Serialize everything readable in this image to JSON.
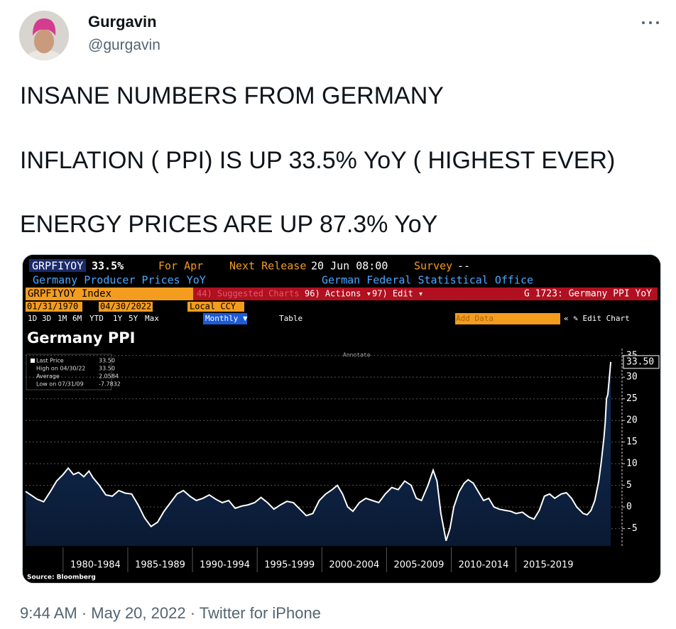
{
  "tweet": {
    "author": {
      "name": "Gurgavin",
      "handle": "@gurgavin"
    },
    "lines": [
      "INSANE NUMBERS FROM GERMANY",
      "INFLATION ( PPI) IS UP 33.5% YoY ( HIGHEST EVER)",
      "ENERGY PRICES ARE UP 87.3% YoY"
    ],
    "timestamp": "9:44 AM · May 20, 2022 · Twitter for iPhone"
  },
  "terminal": {
    "row1": [
      "GRPFIYOY",
      "33.5%",
      "For Apr",
      "Next Release",
      "20 Jun 08:00",
      "Survey",
      "--"
    ],
    "row2": [
      "Germany Producer Prices YoY",
      "German Federal Statistical Office"
    ],
    "row3": [
      "GRPFIYOY Index",
      "44) Suggested Charts",
      "96) Actions ▾",
      "97) Edit ▾",
      "G 1723: Germany PPI YoY"
    ],
    "row4": [
      "01/31/1970",
      "04/30/2022",
      "Local CCY"
    ],
    "row5": [
      "1D",
      "3D",
      "1M",
      "6M",
      "YTD",
      "1Y",
      "5Y",
      "Max",
      "Monthly ▼",
      "Table",
      "Add Data",
      "« ✎ Edit Chart"
    ],
    "annotate": "Annotate",
    "source": "Source: Bloomberg"
  },
  "chart_data": {
    "type": "area",
    "title": "Germany PPI",
    "color": "#ffffff",
    "fill": "#12305a",
    "legend": [
      {
        "label": "Last Price",
        "value": "33.50"
      },
      {
        "label": "High on 04/30/22",
        "value": "33.50"
      },
      {
        "label": "Average",
        "value": "2.0584"
      },
      {
        "label": "Low on 07/31/09",
        "value": "-7.7832"
      }
    ],
    "last_label": "33.50",
    "xlim": [
      1977.1,
      2023.2
    ],
    "ylim": [
      -9,
      36.6
    ],
    "yticks": [
      -5,
      0,
      5,
      10,
      15,
      20,
      25,
      30,
      35
    ],
    "xticks": [
      {
        "value": 1980,
        "label": "1980-1984"
      },
      {
        "value": 1985,
        "label": "1985-1989"
      },
      {
        "value": 1990,
        "label": "1990-1994"
      },
      {
        "value": 1995,
        "label": "1995-1999"
      },
      {
        "value": 2000,
        "label": "2000-2004"
      },
      {
        "value": 2005,
        "label": "2005-2009"
      },
      {
        "value": 2010,
        "label": "2010-2014"
      },
      {
        "value": 2015,
        "label": "2015-2019"
      }
    ],
    "x": [
      1977.1,
      1977.5,
      1978.0,
      1978.5,
      1979.0,
      1979.5,
      1980.0,
      1980.4,
      1980.8,
      1981.2,
      1981.6,
      1982.0,
      1982.3,
      1982.8,
      1983.3,
      1983.8,
      1984.3,
      1984.8,
      1985.3,
      1985.8,
      1986.3,
      1986.8,
      1987.3,
      1987.8,
      1988.3,
      1988.8,
      1989.3,
      1989.8,
      1990.3,
      1990.8,
      1991.3,
      1991.8,
      1992.3,
      1992.8,
      1993.3,
      1993.8,
      1994.3,
      1994.8,
      1995.3,
      1995.8,
      1996.3,
      1996.8,
      1997.3,
      1997.8,
      1998.3,
      1998.8,
      1999.3,
      1999.8,
      2000.3,
      2000.8,
      2001.2,
      2001.6,
      2002.0,
      2002.4,
      2002.9,
      2003.4,
      2003.9,
      2004.4,
      2004.9,
      2005.4,
      2005.9,
      2006.4,
      2006.9,
      2007.3,
      2007.7,
      2008.2,
      2008.6,
      2008.9,
      2009.2,
      2009.6,
      2009.9,
      2010.2,
      2010.6,
      2011.0,
      2011.3,
      2011.7,
      2012.1,
      2012.5,
      2012.9,
      2013.3,
      2013.7,
      2014.2,
      2014.6,
      2015.0,
      2015.5,
      2016.0,
      2016.4,
      2016.8,
      2017.2,
      2017.6,
      2018.0,
      2018.5,
      2018.9,
      2019.3,
      2019.7,
      2020.2,
      2020.5,
      2020.8,
      2021.1,
      2021.4,
      2021.6,
      2021.8,
      2021.9,
      2022.0,
      2022.1,
      2022.25,
      2022.33
    ],
    "values": [
      3.6,
      2.8,
      1.8,
      1.2,
      3.5,
      6.0,
      7.5,
      9.0,
      7.5,
      8.0,
      7.0,
      8.3,
      6.8,
      5.0,
      2.8,
      2.5,
      3.8,
      3.2,
      3.0,
      0.5,
      -2.5,
      -4.5,
      -3.5,
      -1.0,
      1.0,
      3.0,
      3.8,
      2.5,
      1.5,
      2.0,
      2.8,
      1.8,
      1.0,
      1.5,
      -0.3,
      0.2,
      0.5,
      1.0,
      2.2,
      1.0,
      -0.5,
      0.5,
      1.3,
      1.0,
      -0.5,
      -2.0,
      -1.5,
      1.5,
      3.0,
      4.0,
      5.0,
      3.0,
      0.0,
      -1.0,
      1.0,
      2.0,
      1.5,
      1.0,
      3.0,
      4.5,
      4.0,
      6.0,
      5.0,
      2.0,
      1.5,
      5.0,
      8.5,
      6.0,
      -1.5,
      -7.8,
      -5.0,
      0.0,
      3.5,
      5.5,
      6.3,
      5.5,
      3.5,
      1.5,
      2.0,
      0.0,
      -0.5,
      -0.8,
      -1.0,
      -1.5,
      -1.2,
      -2.3,
      -2.8,
      -0.8,
      2.5,
      3.0,
      2.0,
      3.0,
      3.3,
      2.0,
      0.0,
      -1.5,
      -1.8,
      -0.8,
      1.5,
      6.0,
      10.5,
      16.0,
      19.5,
      25.0,
      26.0,
      30.9,
      33.5
    ]
  }
}
